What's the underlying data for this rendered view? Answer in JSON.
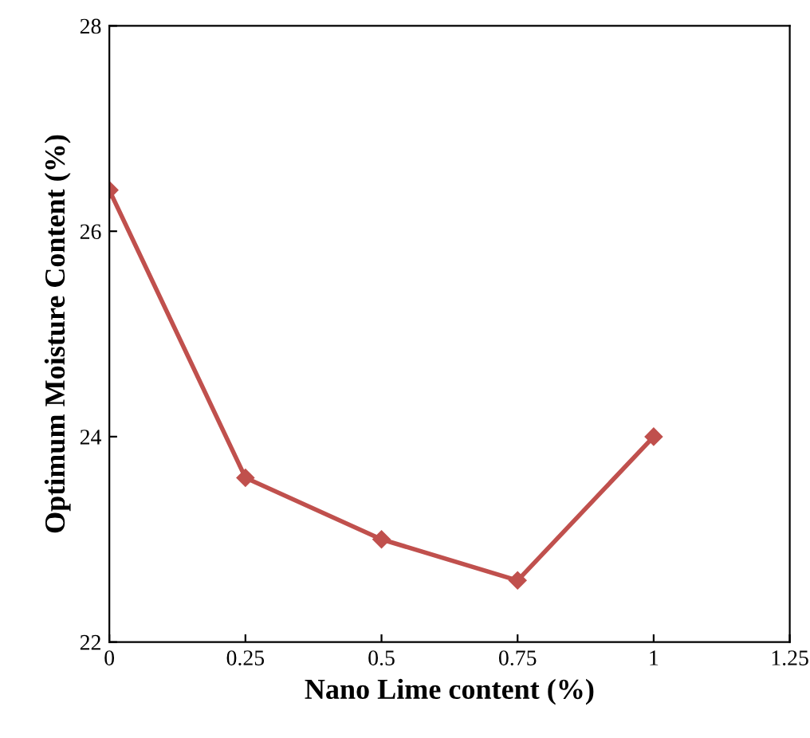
{
  "chart_data": {
    "type": "line",
    "xlabel": "Nano Lime content (%)",
    "ylabel": "Optimum Moisture Content (%)",
    "x": [
      0,
      0.25,
      0.5,
      0.75,
      1
    ],
    "series": [
      {
        "color": "#c0504d",
        "values": [
          26.4,
          23.6,
          23.0,
          22.6,
          24.0
        ]
      }
    ],
    "marker": "diamond",
    "line_style": "solid",
    "grid": false,
    "legend": false,
    "xlim": [
      0,
      1.25
    ],
    "xticks": [
      0,
      0.25,
      0.5,
      0.75,
      1,
      1.25
    ],
    "ylim": [
      22,
      28
    ],
    "yticks": [
      22,
      24,
      26,
      28
    ]
  }
}
